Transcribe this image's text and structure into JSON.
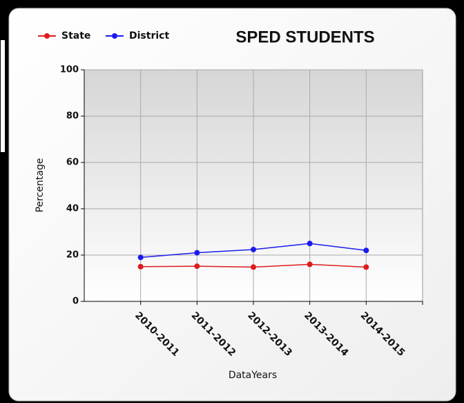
{
  "chart_data": {
    "type": "line",
    "title": "SPED STUDENTS",
    "x_label": "DataYears",
    "y_label": "Percentage",
    "categories": [
      "2010-2011",
      "2011-2012",
      "2012-2013",
      "2013-2014",
      "2014-2015"
    ],
    "series": [
      {
        "name": "State",
        "color": "#dd1c1c",
        "values": [
          15,
          15.2,
          14.8,
          16,
          14.8
        ]
      },
      {
        "name": "District",
        "color": "#1a1aee",
        "values": [
          19,
          21,
          22.4,
          25,
          22
        ]
      }
    ],
    "ylim": [
      0,
      100
    ],
    "yticks": [
      0,
      20,
      40,
      60,
      80,
      100
    ],
    "grid": true,
    "legend": "top-left"
  }
}
